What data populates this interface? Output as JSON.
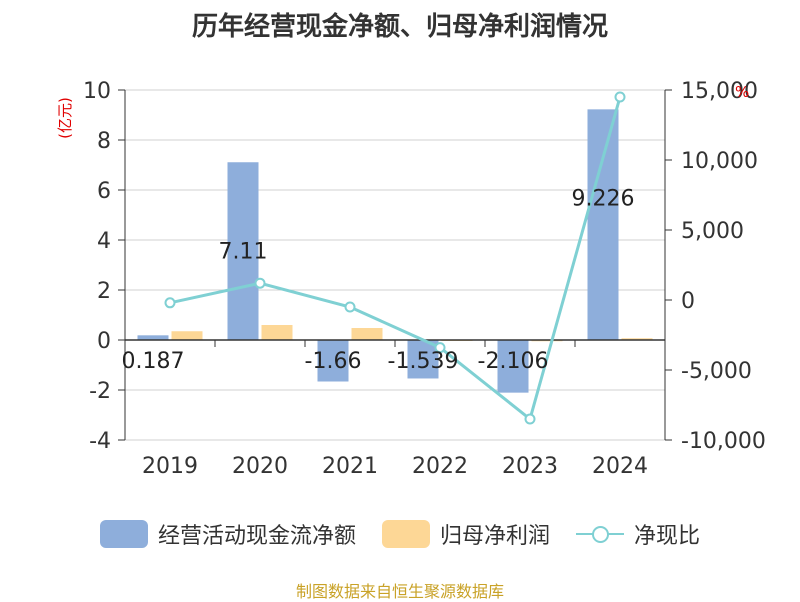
{
  "title": "历年经营现金净额、归母净利润情况",
  "source": "制图数据来自恒生聚源数据库",
  "left_unit": "(亿元)",
  "right_unit": "%",
  "colors": {
    "cashflow": "#8eaedb",
    "net_profit": "#fdd796",
    "ratio": "#7fd0d3",
    "unit": "#e00000"
  },
  "legend": [
    "经营活动现金流净额",
    "归母净利润",
    "净现比"
  ],
  "chart_data": {
    "type": "bar",
    "categories": [
      "2019",
      "2020",
      "2021",
      "2022",
      "2023",
      "2024"
    ],
    "series": [
      {
        "name": "经营活动现金流净额",
        "type": "bar",
        "axis": "left",
        "values": [
          0.187,
          7.11,
          -1.66,
          -1.539,
          -2.106,
          9.226
        ],
        "labels": [
          "0.187",
          "7.11",
          "-1.66",
          "-1.539",
          "-2.106",
          "9.226"
        ]
      },
      {
        "name": "归母净利润",
        "type": "bar",
        "axis": "left",
        "values": [
          0.35,
          0.6,
          0.48,
          -0.04,
          -0.05,
          0.07
        ]
      },
      {
        "name": "净现比",
        "type": "line",
        "axis": "right",
        "values": [
          -200,
          1200,
          -500,
          -3400,
          -8500,
          14500
        ]
      }
    ],
    "ylim_left": [
      -4,
      10
    ],
    "yticks_left": [
      -4,
      -2,
      0,
      2,
      4,
      6,
      8,
      10
    ],
    "ytick_labels_left": [
      "-4",
      "-2",
      "0",
      "2",
      "4",
      "6",
      "8",
      "10"
    ],
    "ylim_right": [
      -10000,
      15000
    ],
    "yticks_right": [
      -10000,
      -5000,
      0,
      5000,
      10000,
      15000
    ],
    "ytick_labels_right": [
      "-10,000",
      "-5,000",
      "0",
      "5,000",
      "10,000",
      "15,000"
    ],
    "grid": true,
    "legend_position": "bottom"
  }
}
